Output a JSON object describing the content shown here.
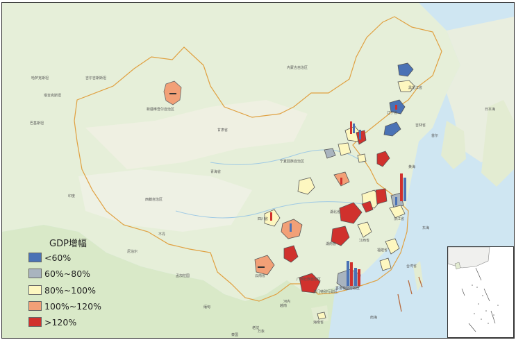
{
  "legend": {
    "title": "GDP增幅",
    "items": [
      {
        "label": "<60%",
        "color": "#4a72b5"
      },
      {
        "label": "60%~80%",
        "color": "#a9b4bf"
      },
      {
        "label": "80%~100%",
        "color": "#fdf7c0"
      },
      {
        "label": "100%~120%",
        "color": "#f2a077"
      },
      {
        "label": ">120%",
        "color": "#d0312d"
      }
    ]
  },
  "map_labels": [
    "哈萨克斯坦",
    "吉尔吉斯斯坦",
    "塔吉克斯坦",
    "巴基斯坦",
    "印度",
    "新疆维吾尔自治区",
    "西藏自治区",
    "青海省",
    "内蒙古自治区",
    "宁夏回族自治区",
    "甘肃省",
    "黑龙江省",
    "吉林省",
    "辽宁省",
    "四川省",
    "云南省",
    "湖南省",
    "湖北省",
    "江西省",
    "福建省",
    "浙江省",
    "广西壮族自治区",
    "香港特别行政区",
    "澳门特别行政区",
    "海南省",
    "台湾省",
    "东海",
    "南海",
    "黄海",
    "日本海",
    "尼泊尔",
    "孟加拉国",
    "缅甸",
    "老挝",
    "泰国",
    "越南",
    "不丹",
    "首尔",
    "河内",
    "万象"
  ]
}
